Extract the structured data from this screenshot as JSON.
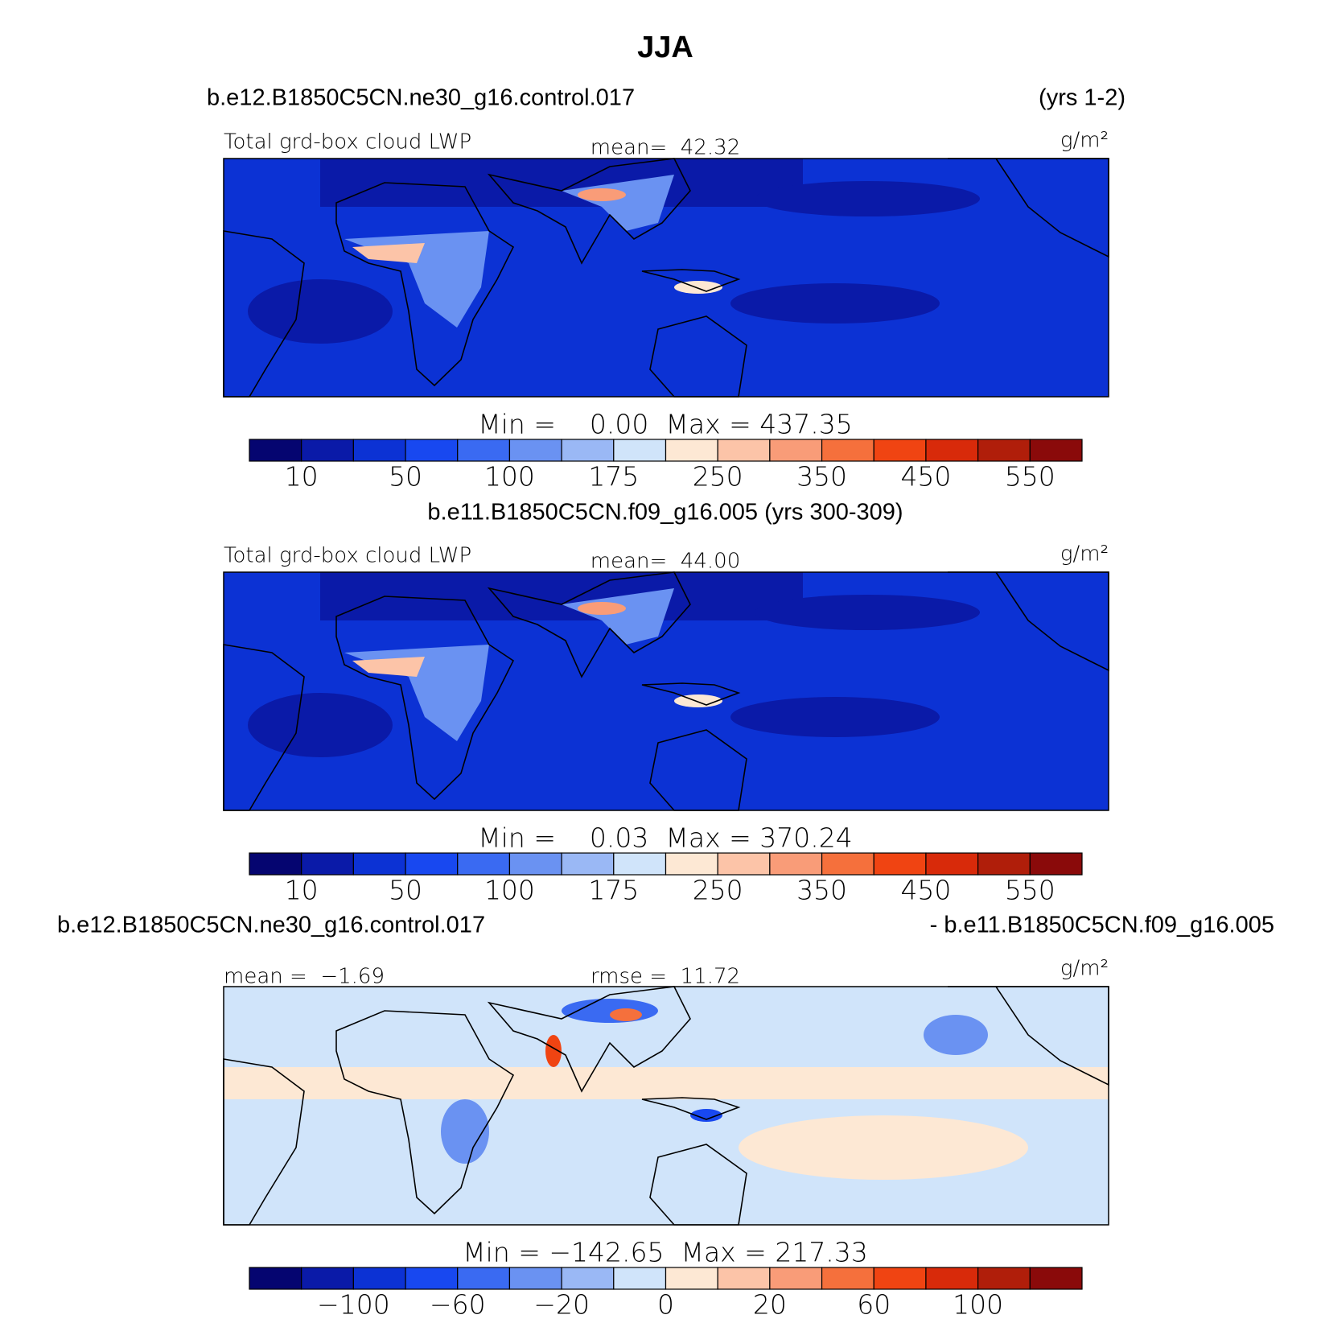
{
  "title": "JJA",
  "panels": [
    {
      "case": "b.e12.B1850C5CN.ne30_g16.control.017",
      "years": "(yrs 1-2)",
      "variable": "Total grd-box cloud LWP",
      "mean": "mean=  42.32",
      "units": "g/m²",
      "range": "Min =    0.00  Max = 437.35",
      "colorbar": {
        "colors": [
          "#050570",
          "#0a1aa8",
          "#0c32d4",
          "#1848f0",
          "#3a6af2",
          "#6a92f2",
          "#9ab8f5",
          "#d0e4fa",
          "#fde8d4",
          "#fcc4a8",
          "#f99c78",
          "#f5703c",
          "#f04412",
          "#d82a0a",
          "#b01e0a",
          "#8a0a0a"
        ],
        "labels": [
          10,
          50,
          100,
          175,
          250,
          350,
          450,
          550
        ]
      }
    },
    {
      "case": "b.e11.B1850C5CN.f09_g16.005 (yrs 300-309)",
      "variable": "Total grd-box cloud LWP",
      "mean": "mean=  44.00",
      "units": "g/m²",
      "range": "Min =    0.03  Max = 370.24",
      "colorbar": {
        "colors": [
          "#050570",
          "#0a1aa8",
          "#0c32d4",
          "#1848f0",
          "#3a6af2",
          "#6a92f2",
          "#9ab8f5",
          "#d0e4fa",
          "#fde8d4",
          "#fcc4a8",
          "#f99c78",
          "#f5703c",
          "#f04412",
          "#d82a0a",
          "#b01e0a",
          "#8a0a0a"
        ],
        "labels": [
          10,
          50,
          100,
          175,
          250,
          350,
          450,
          550
        ]
      }
    },
    {
      "case": "b.e12.B1850C5CN.ne30_g16.control.017",
      "case2": "- b.e11.B1850C5CN.f09_g16.005",
      "mean": "mean =  −1.69",
      "rmse": "rmse =  11.72",
      "units": "g/m²",
      "range": "Min = −142.65  Max = 217.33",
      "colorbar": {
        "colors": [
          "#050570",
          "#0a1aa8",
          "#0c32d4",
          "#1848f0",
          "#3a6af2",
          "#6a92f2",
          "#9ab8f5",
          "#d0e4fa",
          "#fde8d4",
          "#fcc4a8",
          "#f99c78",
          "#f5703c",
          "#f04412",
          "#d82a0a",
          "#b01e0a",
          "#8a0a0a"
        ],
        "labels": [
          {
            "value": -100,
            "label": "−100"
          },
          {
            "value": -60,
            "label": "−60"
          },
          {
            "value": -20,
            "label": "−20"
          },
          0,
          20,
          60,
          100
        ]
      }
    }
  ]
}
